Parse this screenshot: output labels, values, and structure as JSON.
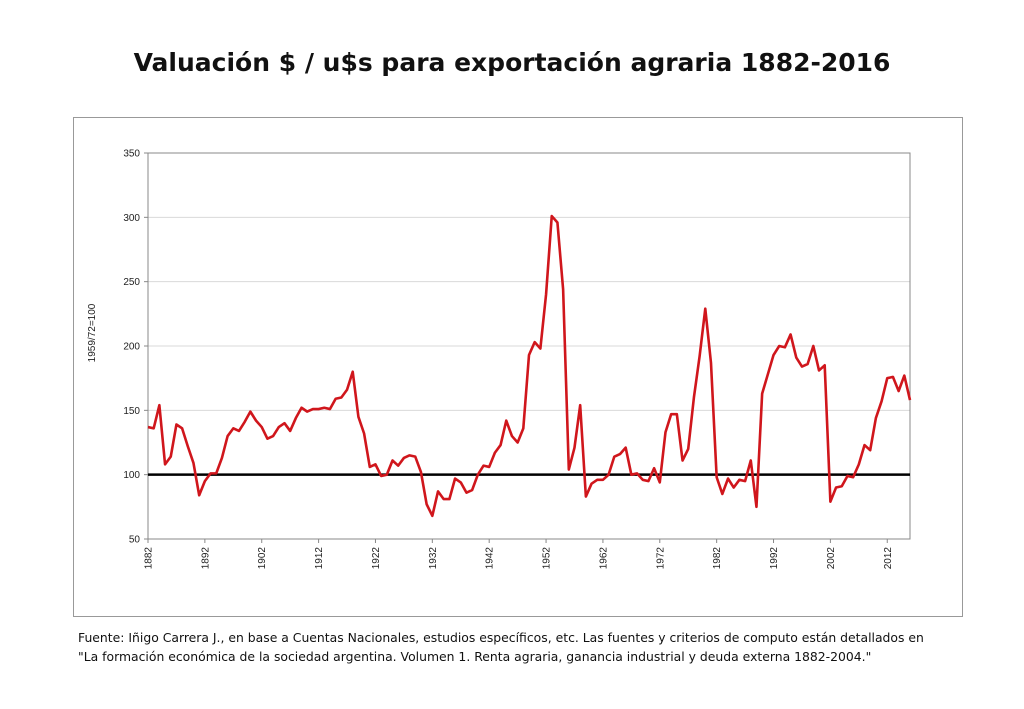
{
  "title": "Valuación $ / u$s para exportación agraria 1882-2016",
  "source_line1": "Fuente: Iñigo Carrera J.,  en base a Cuentas Nacionales, estudios específicos, etc. Las fuentes y criterios de computo están detallados en",
  "source_line2": "\"La formación económica de la sociedad argentina. Volumen 1. Renta agraria, ganancia industrial y deuda externa 1882-2004.\"",
  "colors": {
    "series": "#d0161c",
    "reference": "#000000",
    "grid": "#d9d9d9",
    "axis": "#888888"
  },
  "chart_data": {
    "type": "line",
    "title": "",
    "ylabel": "1959/72=100",
    "xlabel": "",
    "ylim": [
      50,
      350
    ],
    "yticks": [
      50,
      100,
      150,
      200,
      250,
      300,
      350
    ],
    "xticks": [
      1882,
      1892,
      1902,
      1912,
      1922,
      1932,
      1942,
      1952,
      1962,
      1972,
      1982,
      1992,
      2002,
      2012
    ],
    "grid": true,
    "reference_line": 100,
    "series": [
      {
        "x": [
          1882,
          1883,
          1884,
          1885,
          1886,
          1887,
          1888,
          1889,
          1890,
          1891,
          1892,
          1893,
          1894,
          1895,
          1896,
          1897,
          1898,
          1899,
          1900,
          1901,
          1902,
          1903,
          1904,
          1905,
          1906,
          1907,
          1908,
          1909,
          1910,
          1911,
          1912,
          1913,
          1914,
          1915,
          1916,
          1917,
          1918,
          1919,
          1920,
          1921,
          1922,
          1923,
          1924,
          1925,
          1926,
          1927,
          1928,
          1929,
          1930,
          1931,
          1932,
          1933,
          1934,
          1935,
          1936,
          1937,
          1938,
          1939,
          1940,
          1941,
          1942,
          1943,
          1944,
          1945,
          1946,
          1947,
          1948,
          1949,
          1950,
          1951,
          1952,
          1953,
          1954,
          1955,
          1956,
          1957,
          1958,
          1959,
          1960,
          1961,
          1962,
          1963,
          1964,
          1965,
          1966,
          1967,
          1968,
          1969,
          1970,
          1971,
          1972,
          1973,
          1974,
          1975,
          1976,
          1977,
          1978,
          1979,
          1980,
          1981,
          1982,
          1983,
          1984,
          1985,
          1986,
          1987,
          1988,
          1989,
          1990,
          1991,
          1992,
          1993,
          1994,
          1995,
          1996,
          1997,
          1998,
          1999,
          2000,
          2001,
          2002,
          2003,
          2004,
          2005,
          2006,
          2007,
          2008,
          2009,
          2010,
          2011,
          2012,
          2013,
          2014,
          2015,
          2016
        ],
        "values": [
          137,
          136,
          154,
          108,
          114,
          139,
          136,
          122,
          109,
          84,
          95,
          101,
          101,
          113,
          130,
          136,
          134,
          141,
          149,
          142,
          137,
          128,
          130,
          137,
          140,
          134,
          144,
          152,
          149,
          151,
          151,
          152,
          151,
          159,
          160,
          166,
          180,
          145,
          132,
          106,
          108,
          99,
          100,
          111,
          107,
          113,
          115,
          114,
          102,
          77,
          68,
          87,
          81,
          81,
          97,
          94,
          86,
          88,
          100,
          107,
          106,
          117,
          123,
          142,
          130,
          125,
          136,
          193,
          203,
          198,
          240,
          301,
          296,
          244,
          104,
          121,
          154,
          83,
          93,
          96,
          96,
          100,
          114,
          116,
          121,
          100,
          101,
          96,
          95,
          105,
          94,
          133,
          147,
          147,
          111,
          120,
          160,
          192,
          229,
          187,
          98,
          85,
          97,
          90,
          96,
          95,
          111,
          75,
          163,
          178,
          193,
          200,
          199,
          209,
          191,
          184,
          186,
          200,
          181,
          185,
          79,
          90,
          91,
          99,
          98,
          108,
          123,
          119,
          144,
          157,
          175,
          176,
          165,
          177,
          158
        ]
      }
    ]
  }
}
